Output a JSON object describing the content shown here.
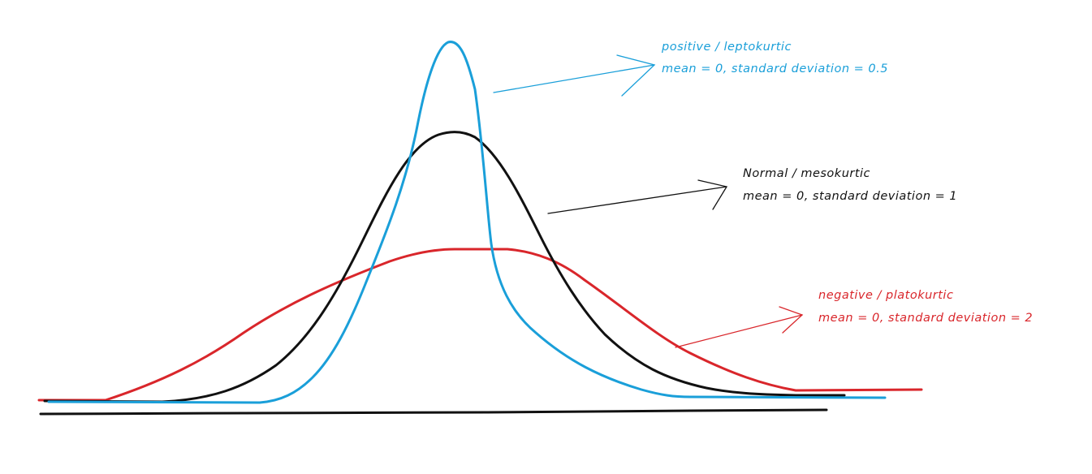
{
  "annotations": {
    "leptokurtic": {
      "title": "positive / leptokurtic",
      "params": "mean = 0, standard deviation = 0.5"
    },
    "mesokurtic": {
      "title": "Normal / mesokurtic",
      "params": "mean = 0, standard deviation = 1"
    },
    "platykurtic": {
      "title": "negative / platokurtic",
      "params": "mean = 0, standard deviation = 2"
    }
  },
  "curves": [
    {
      "id": "leptokurtic",
      "mean": 0,
      "sd": 0.5,
      "color": "#1a9fd9"
    },
    {
      "id": "mesokurtic",
      "mean": 0,
      "sd": 1,
      "color": "#111111"
    },
    {
      "id": "platykurtic",
      "mean": 0,
      "sd": 2,
      "color": "#d9262b"
    }
  ],
  "axis_color": "#111111"
}
